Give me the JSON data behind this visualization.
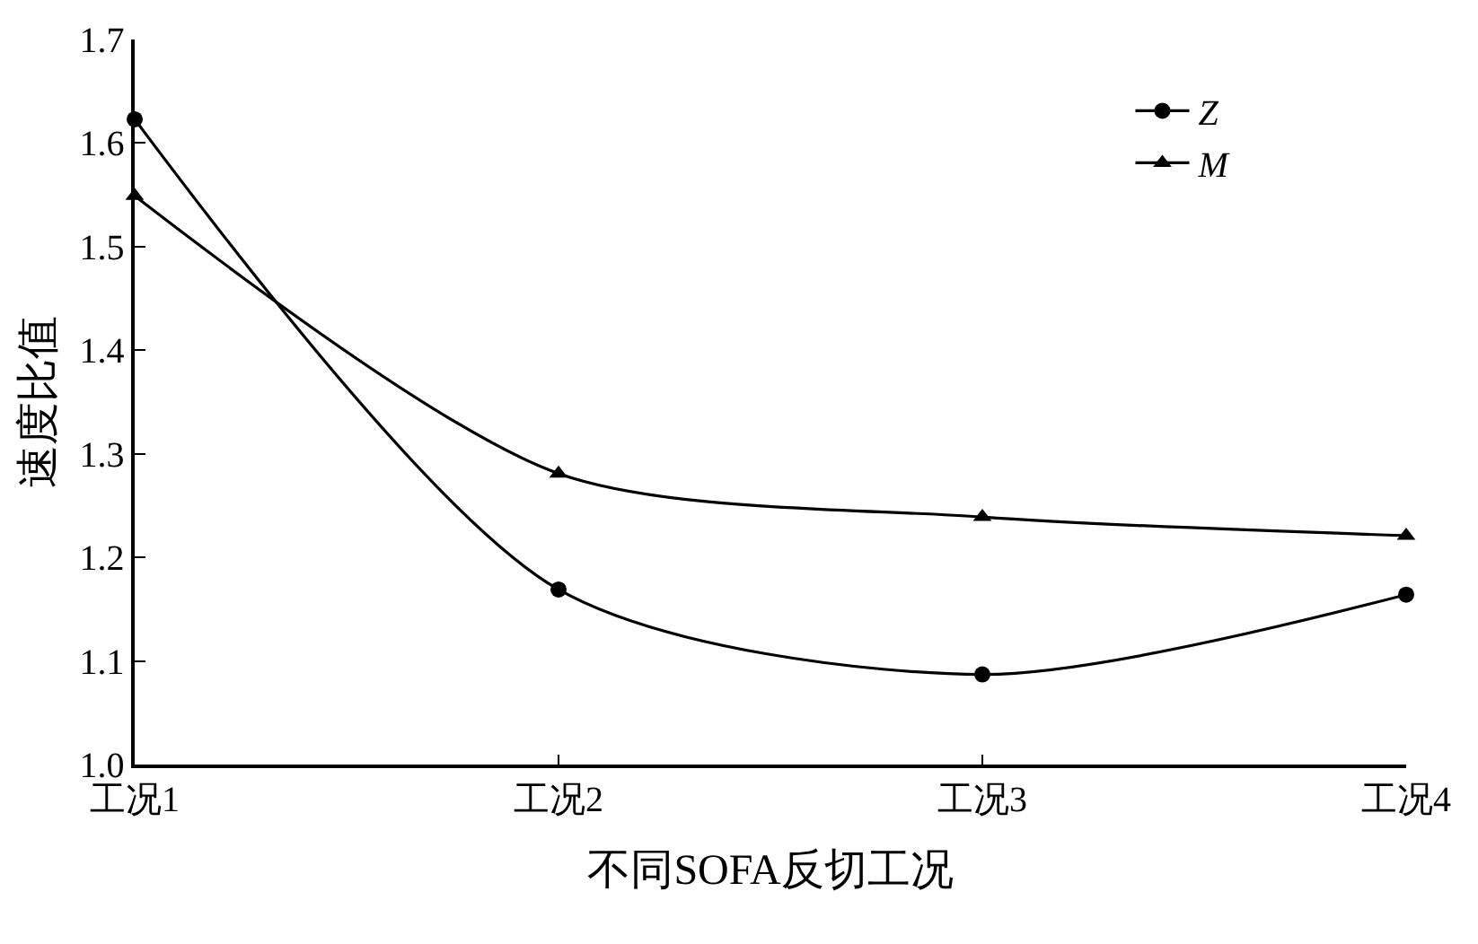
{
  "chart_data": {
    "type": "line",
    "xlabel": "不同SOFA反切工况",
    "ylabel": "速度比值",
    "categories": [
      "工况1",
      "工况2",
      "工况3",
      "工况4"
    ],
    "series": [
      {
        "name": "Z",
        "color": "#000000",
        "marker": "circle",
        "values": [
          1.623,
          1.169,
          1.087,
          1.164
        ]
      },
      {
        "name": "M",
        "color": "#000000",
        "marker": "triangle",
        "values": [
          1.549,
          1.281,
          1.239,
          1.221
        ]
      }
    ],
    "ylim": [
      1.0,
      1.7
    ],
    "yticks": [
      {
        "value": 1.0,
        "label": "1.0"
      },
      1.1,
      1.2,
      1.3,
      1.4,
      1.5,
      1.6,
      1.7
    ],
    "legend": "top right",
    "line_style": "solid"
  }
}
